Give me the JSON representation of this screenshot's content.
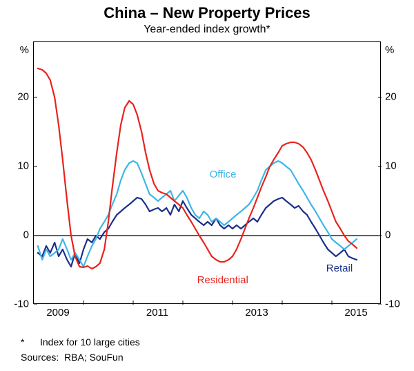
{
  "title": "China – New Property Prices",
  "subtitle": "Year-ended index growth*",
  "footnote_marker": "*",
  "footnote_text": "Index for 10 large cities",
  "sources_label": "Sources:",
  "sources_text": "RBA; SouFun",
  "y_axis": {
    "unit": "%",
    "min": -10,
    "max": 28,
    "ticks": [
      -10,
      0,
      10,
      20
    ],
    "grid": false
  },
  "x_axis": {
    "min": 2008.0,
    "max": 2015.0,
    "tick_years": [
      2009,
      2011,
      2013,
      2015
    ],
    "grid_years": [
      2009,
      2010,
      2011,
      2012,
      2013,
      2014
    ]
  },
  "zero_line_color": "#000000",
  "grid_color": "#000000",
  "grid_width": 0.6,
  "series": {
    "residential": {
      "label": "Residential",
      "color": "#e8231d",
      "width": 2.2,
      "label_pos": {
        "x": 2011.3,
        "y": -6.5
      },
      "points": [
        [
          2008.08,
          24.2
        ],
        [
          2008.17,
          24.0
        ],
        [
          2008.25,
          23.5
        ],
        [
          2008.33,
          22.5
        ],
        [
          2008.42,
          20.0
        ],
        [
          2008.5,
          16.0
        ],
        [
          2008.58,
          11.0
        ],
        [
          2008.67,
          5.0
        ],
        [
          2008.75,
          0.0
        ],
        [
          2008.83,
          -3.0
        ],
        [
          2008.92,
          -4.5
        ],
        [
          2009.0,
          -4.6
        ],
        [
          2009.08,
          -4.4
        ],
        [
          2009.17,
          -4.8
        ],
        [
          2009.25,
          -4.5
        ],
        [
          2009.33,
          -4.0
        ],
        [
          2009.42,
          -2.0
        ],
        [
          2009.5,
          2.0
        ],
        [
          2009.58,
          7.0
        ],
        [
          2009.67,
          12.0
        ],
        [
          2009.75,
          16.0
        ],
        [
          2009.83,
          18.5
        ],
        [
          2009.92,
          19.5
        ],
        [
          2010.0,
          19.0
        ],
        [
          2010.08,
          17.5
        ],
        [
          2010.17,
          15.0
        ],
        [
          2010.25,
          12.0
        ],
        [
          2010.33,
          9.5
        ],
        [
          2010.42,
          7.5
        ],
        [
          2010.5,
          6.5
        ],
        [
          2010.58,
          6.2
        ],
        [
          2010.67,
          6.0
        ],
        [
          2010.75,
          5.5
        ],
        [
          2010.83,
          5.0
        ],
        [
          2010.92,
          4.5
        ],
        [
          2011.0,
          4.0
        ],
        [
          2011.08,
          3.0
        ],
        [
          2011.17,
          2.0
        ],
        [
          2011.25,
          1.0
        ],
        [
          2011.33,
          0.0
        ],
        [
          2011.42,
          -1.0
        ],
        [
          2011.5,
          -2.0
        ],
        [
          2011.58,
          -3.0
        ],
        [
          2011.67,
          -3.5
        ],
        [
          2011.75,
          -3.8
        ],
        [
          2011.83,
          -3.8
        ],
        [
          2011.92,
          -3.5
        ],
        [
          2012.0,
          -3.0
        ],
        [
          2012.08,
          -2.0
        ],
        [
          2012.17,
          -0.5
        ],
        [
          2012.25,
          1.0
        ],
        [
          2012.33,
          2.5
        ],
        [
          2012.42,
          4.0
        ],
        [
          2012.5,
          5.5
        ],
        [
          2012.58,
          7.0
        ],
        [
          2012.67,
          8.5
        ],
        [
          2012.75,
          10.0
        ],
        [
          2012.83,
          11.0
        ],
        [
          2012.92,
          12.0
        ],
        [
          2013.0,
          13.0
        ],
        [
          2013.08,
          13.3
        ],
        [
          2013.17,
          13.5
        ],
        [
          2013.25,
          13.5
        ],
        [
          2013.33,
          13.3
        ],
        [
          2013.42,
          12.8
        ],
        [
          2013.5,
          12.0
        ],
        [
          2013.58,
          11.0
        ],
        [
          2013.67,
          9.5
        ],
        [
          2013.75,
          8.0
        ],
        [
          2013.83,
          6.5
        ],
        [
          2013.92,
          5.0
        ],
        [
          2014.0,
          3.5
        ],
        [
          2014.08,
          2.0
        ],
        [
          2014.17,
          1.0
        ],
        [
          2014.25,
          0.0
        ],
        [
          2014.33,
          -0.8
        ],
        [
          2014.42,
          -1.3
        ],
        [
          2014.5,
          -1.8
        ]
      ]
    },
    "office": {
      "label": "Office",
      "color": "#3db6e6",
      "width": 2.2,
      "label_pos": {
        "x": 2011.55,
        "y": 8.8
      },
      "points": [
        [
          2008.08,
          -1.5
        ],
        [
          2008.17,
          -3.5
        ],
        [
          2008.25,
          -2.0
        ],
        [
          2008.33,
          -3.0
        ],
        [
          2008.42,
          -2.5
        ],
        [
          2008.5,
          -2.0
        ],
        [
          2008.58,
          -0.5
        ],
        [
          2008.67,
          -2.0
        ],
        [
          2008.75,
          -3.5
        ],
        [
          2008.83,
          -2.5
        ],
        [
          2008.92,
          -3.5
        ],
        [
          2009.0,
          -4.5
        ],
        [
          2009.08,
          -3.0
        ],
        [
          2009.17,
          -1.5
        ],
        [
          2009.25,
          -0.5
        ],
        [
          2009.33,
          1.0
        ],
        [
          2009.42,
          2.0
        ],
        [
          2009.5,
          3.0
        ],
        [
          2009.58,
          4.5
        ],
        [
          2009.67,
          6.0
        ],
        [
          2009.75,
          8.0
        ],
        [
          2009.83,
          9.5
        ],
        [
          2009.92,
          10.5
        ],
        [
          2010.0,
          10.8
        ],
        [
          2010.08,
          10.5
        ],
        [
          2010.17,
          9.0
        ],
        [
          2010.25,
          7.5
        ],
        [
          2010.33,
          6.0
        ],
        [
          2010.42,
          5.5
        ],
        [
          2010.5,
          5.0
        ],
        [
          2010.58,
          5.5
        ],
        [
          2010.67,
          6.0
        ],
        [
          2010.75,
          6.5
        ],
        [
          2010.83,
          5.0
        ],
        [
          2010.92,
          5.8
        ],
        [
          2011.0,
          6.5
        ],
        [
          2011.08,
          5.5
        ],
        [
          2011.17,
          4.0
        ],
        [
          2011.25,
          3.0
        ],
        [
          2011.33,
          2.5
        ],
        [
          2011.42,
          3.5
        ],
        [
          2011.5,
          3.0
        ],
        [
          2011.58,
          2.0
        ],
        [
          2011.67,
          2.5
        ],
        [
          2011.75,
          2.0
        ],
        [
          2011.83,
          1.5
        ],
        [
          2011.92,
          2.0
        ],
        [
          2012.0,
          2.5
        ],
        [
          2012.08,
          3.0
        ],
        [
          2012.17,
          3.5
        ],
        [
          2012.25,
          4.0
        ],
        [
          2012.33,
          4.5
        ],
        [
          2012.42,
          5.5
        ],
        [
          2012.5,
          6.5
        ],
        [
          2012.58,
          8.0
        ],
        [
          2012.67,
          9.5
        ],
        [
          2012.75,
          10.0
        ],
        [
          2012.83,
          10.5
        ],
        [
          2012.92,
          10.8
        ],
        [
          2013.0,
          10.5
        ],
        [
          2013.08,
          10.0
        ],
        [
          2013.17,
          9.5
        ],
        [
          2013.25,
          8.5
        ],
        [
          2013.33,
          7.5
        ],
        [
          2013.42,
          6.5
        ],
        [
          2013.5,
          5.5
        ],
        [
          2013.58,
          4.5
        ],
        [
          2013.67,
          3.5
        ],
        [
          2013.75,
          2.5
        ],
        [
          2013.83,
          1.5
        ],
        [
          2013.92,
          0.5
        ],
        [
          2014.0,
          -0.5
        ],
        [
          2014.08,
          -1.0
        ],
        [
          2014.17,
          -1.5
        ],
        [
          2014.25,
          -2.0
        ],
        [
          2014.33,
          -1.5
        ],
        [
          2014.42,
          -1.0
        ],
        [
          2014.5,
          -0.5
        ]
      ]
    },
    "retail": {
      "label": "Retail",
      "color": "#1a2f8a",
      "width": 2.2,
      "label_pos": {
        "x": 2013.9,
        "y": -4.8
      },
      "points": [
        [
          2008.08,
          -2.5
        ],
        [
          2008.17,
          -3.0
        ],
        [
          2008.25,
          -1.5
        ],
        [
          2008.33,
          -2.5
        ],
        [
          2008.42,
          -1.0
        ],
        [
          2008.5,
          -3.0
        ],
        [
          2008.58,
          -2.0
        ],
        [
          2008.67,
          -3.5
        ],
        [
          2008.75,
          -4.5
        ],
        [
          2008.83,
          -2.5
        ],
        [
          2008.92,
          -4.0
        ],
        [
          2009.0,
          -2.0
        ],
        [
          2009.08,
          -0.5
        ],
        [
          2009.17,
          -1.0
        ],
        [
          2009.25,
          0.0
        ],
        [
          2009.33,
          -0.5
        ],
        [
          2009.42,
          0.5
        ],
        [
          2009.5,
          1.0
        ],
        [
          2009.58,
          2.0
        ],
        [
          2009.67,
          3.0
        ],
        [
          2009.75,
          3.5
        ],
        [
          2009.83,
          4.0
        ],
        [
          2009.92,
          4.5
        ],
        [
          2010.0,
          5.0
        ],
        [
          2010.08,
          5.5
        ],
        [
          2010.17,
          5.3
        ],
        [
          2010.25,
          4.5
        ],
        [
          2010.33,
          3.5
        ],
        [
          2010.42,
          3.8
        ],
        [
          2010.5,
          4.0
        ],
        [
          2010.58,
          3.5
        ],
        [
          2010.67,
          4.0
        ],
        [
          2010.75,
          3.0
        ],
        [
          2010.83,
          4.5
        ],
        [
          2010.92,
          3.5
        ],
        [
          2011.0,
          5.0
        ],
        [
          2011.08,
          4.0
        ],
        [
          2011.17,
          3.0
        ],
        [
          2011.25,
          2.5
        ],
        [
          2011.33,
          2.0
        ],
        [
          2011.42,
          1.5
        ],
        [
          2011.5,
          2.0
        ],
        [
          2011.58,
          1.5
        ],
        [
          2011.67,
          2.5
        ],
        [
          2011.75,
          1.5
        ],
        [
          2011.83,
          1.0
        ],
        [
          2011.92,
          1.5
        ],
        [
          2012.0,
          1.0
        ],
        [
          2012.08,
          1.5
        ],
        [
          2012.17,
          1.0
        ],
        [
          2012.25,
          1.5
        ],
        [
          2012.33,
          2.0
        ],
        [
          2012.42,
          2.5
        ],
        [
          2012.5,
          2.0
        ],
        [
          2012.58,
          3.0
        ],
        [
          2012.67,
          4.0
        ],
        [
          2012.75,
          4.5
        ],
        [
          2012.83,
          5.0
        ],
        [
          2012.92,
          5.3
        ],
        [
          2013.0,
          5.5
        ],
        [
          2013.08,
          5.0
        ],
        [
          2013.17,
          4.5
        ],
        [
          2013.25,
          4.0
        ],
        [
          2013.33,
          4.3
        ],
        [
          2013.42,
          3.5
        ],
        [
          2013.5,
          3.0
        ],
        [
          2013.58,
          2.0
        ],
        [
          2013.67,
          1.0
        ],
        [
          2013.75,
          0.0
        ],
        [
          2013.83,
          -1.0
        ],
        [
          2013.92,
          -2.0
        ],
        [
          2014.0,
          -2.5
        ],
        [
          2014.08,
          -3.0
        ],
        [
          2014.17,
          -2.5
        ],
        [
          2014.25,
          -2.0
        ],
        [
          2014.33,
          -3.0
        ],
        [
          2014.42,
          -3.3
        ],
        [
          2014.5,
          -3.5
        ]
      ]
    }
  }
}
